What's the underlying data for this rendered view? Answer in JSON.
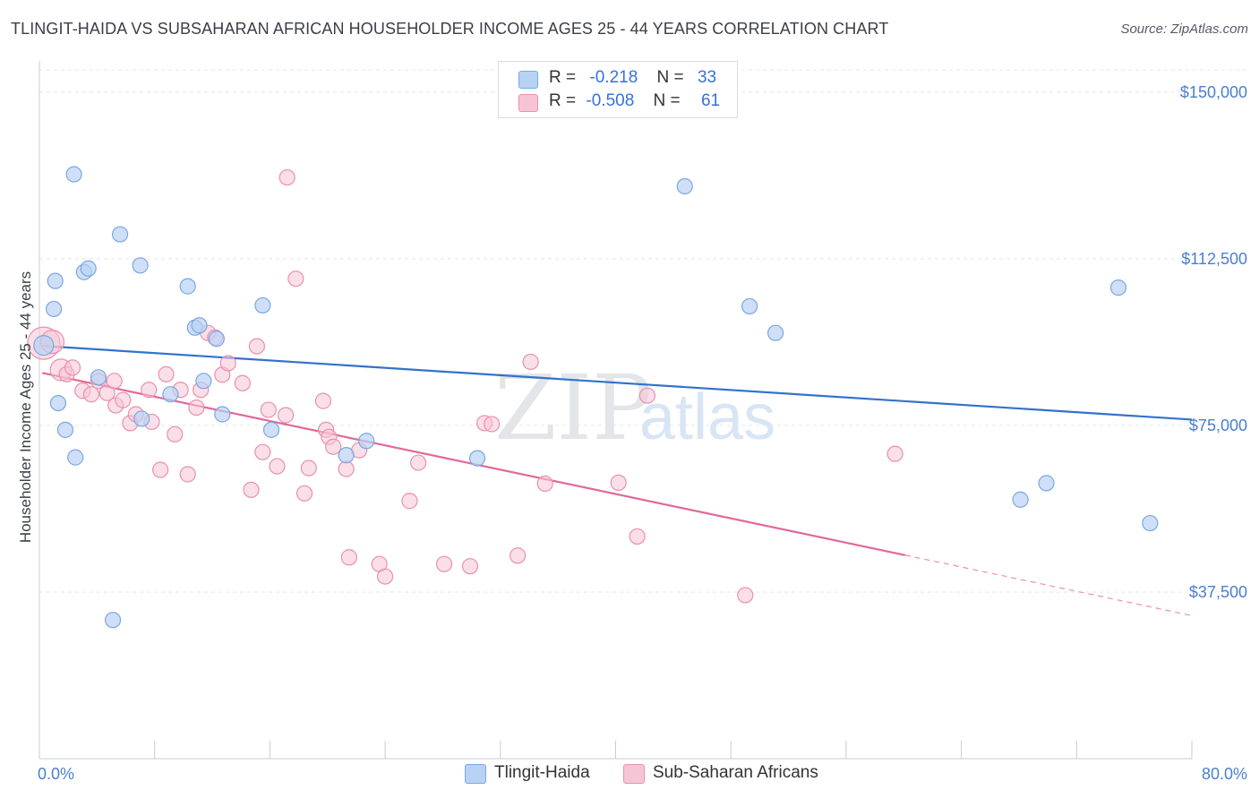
{
  "title": "TLINGIT-HAIDA VS SUBSAHARAN AFRICAN HOUSEHOLDER INCOME AGES 25 - 44 YEARS CORRELATION CHART",
  "source": "Source: ZipAtlas.com",
  "watermark": {
    "zip": "ZIP",
    "atlas": "atlas"
  },
  "legend": {
    "rows": [
      {
        "r_label": "R =",
        "r_value": "-0.218",
        "n_label": "N =",
        "n_value": "33"
      },
      {
        "r_label": "R =",
        "r_value": "-0.508",
        "n_label": "N =",
        "n_value": "61"
      }
    ]
  },
  "chart_data": {
    "type": "scatter",
    "title": "TLINGIT-HAIDA VS SUBSAHARAN AFRICAN HOUSEHOLDER INCOME AGES 25 - 44 YEARS CORRELATION CHART",
    "xlabel": "",
    "ylabel": "Householder Income Ages 25 - 44 years",
    "xlim": [
      0,
      80
    ],
    "ylim": [
      0,
      155000
    ],
    "x_tick_labels": [
      "0.0%",
      "80.0%"
    ],
    "y_ticks": [
      37500,
      75000,
      112500,
      150000
    ],
    "y_tick_labels": [
      "$37,500",
      "$75,000",
      "$112,500",
      "$150,000"
    ],
    "grid": true,
    "legend_position": "top-center",
    "series": [
      {
        "name": "Tlingit-Haida",
        "color": "#7ba7e0",
        "fill": "#b9d2f3",
        "trend": {
          "x": [
            0.2,
            80
          ],
          "y": [
            92900,
            76300
          ]
        },
        "points": [
          [
            0.3,
            93000
          ],
          [
            1.0,
            101200
          ],
          [
            1.1,
            107500
          ],
          [
            1.3,
            80000
          ],
          [
            1.8,
            74000
          ],
          [
            2.5,
            67800
          ],
          [
            2.4,
            131500
          ],
          [
            3.1,
            109500
          ],
          [
            3.4,
            110300
          ],
          [
            4.1,
            85800
          ],
          [
            5.6,
            118000
          ],
          [
            5.1,
            31200
          ],
          [
            7.0,
            111000
          ],
          [
            7.1,
            76500
          ],
          [
            9.1,
            82000
          ],
          [
            10.3,
            106300
          ],
          [
            10.8,
            97000
          ],
          [
            11.1,
            97500
          ],
          [
            11.4,
            85000
          ],
          [
            12.3,
            94500
          ],
          [
            12.7,
            77500
          ],
          [
            15.5,
            102000
          ],
          [
            16.1,
            74000
          ],
          [
            21.3,
            68300
          ],
          [
            22.7,
            71500
          ],
          [
            30.4,
            67600
          ],
          [
            44.8,
            128800
          ],
          [
            49.3,
            101800
          ],
          [
            51.1,
            95800
          ],
          [
            68.1,
            58300
          ],
          [
            69.9,
            62000
          ],
          [
            74.9,
            106000
          ],
          [
            77.1,
            53000
          ]
        ]
      },
      {
        "name": "Sub-Saharan Africans",
        "color": "#e990ad",
        "fill": "#f6c5d5",
        "trend": {
          "x": [
            0.2,
            60.1
          ],
          "y": [
            86800,
            45800
          ]
        },
        "trend_dashed": {
          "x": [
            60.1,
            80
          ],
          "y": [
            45800,
            32200
          ]
        },
        "points": [
          [
            0.3,
            93500
          ],
          [
            0.9,
            93800
          ],
          [
            1.5,
            87500
          ],
          [
            1.9,
            86500
          ],
          [
            2.3,
            88000
          ],
          [
            3.0,
            82800
          ],
          [
            3.6,
            82000
          ],
          [
            4.1,
            85000
          ],
          [
            4.7,
            82300
          ],
          [
            5.2,
            85000
          ],
          [
            5.3,
            79500
          ],
          [
            5.8,
            80700
          ],
          [
            6.3,
            75500
          ],
          [
            6.7,
            77500
          ],
          [
            7.6,
            83000
          ],
          [
            7.8,
            75800
          ],
          [
            8.4,
            65000
          ],
          [
            8.8,
            86500
          ],
          [
            9.4,
            73000
          ],
          [
            9.8,
            83000
          ],
          [
            10.3,
            64000
          ],
          [
            10.9,
            79000
          ],
          [
            11.2,
            83000
          ],
          [
            11.7,
            95800
          ],
          [
            12.2,
            94800
          ],
          [
            12.7,
            86400
          ],
          [
            13.1,
            89000
          ],
          [
            14.1,
            84500
          ],
          [
            14.7,
            60500
          ],
          [
            15.1,
            92800
          ],
          [
            15.5,
            69000
          ],
          [
            15.9,
            78500
          ],
          [
            16.5,
            65800
          ],
          [
            17.1,
            77300
          ],
          [
            17.2,
            130800
          ],
          [
            17.8,
            108000
          ],
          [
            18.4,
            59700
          ],
          [
            18.7,
            65400
          ],
          [
            19.7,
            80500
          ],
          [
            19.9,
            74000
          ],
          [
            20.1,
            72400
          ],
          [
            20.4,
            70200
          ],
          [
            21.3,
            65200
          ],
          [
            21.5,
            45300
          ],
          [
            22.2,
            69400
          ],
          [
            23.6,
            43800
          ],
          [
            24.0,
            41000
          ],
          [
            25.7,
            58000
          ],
          [
            26.3,
            66600
          ],
          [
            28.1,
            43800
          ],
          [
            29.9,
            43300
          ],
          [
            30.9,
            75500
          ],
          [
            31.4,
            75300
          ],
          [
            33.2,
            45700
          ],
          [
            34.1,
            89300
          ],
          [
            35.1,
            61900
          ],
          [
            40.2,
            62100
          ],
          [
            41.5,
            50000
          ],
          [
            42.2,
            81700
          ],
          [
            49.0,
            36800
          ],
          [
            59.4,
            68600
          ]
        ]
      }
    ]
  }
}
